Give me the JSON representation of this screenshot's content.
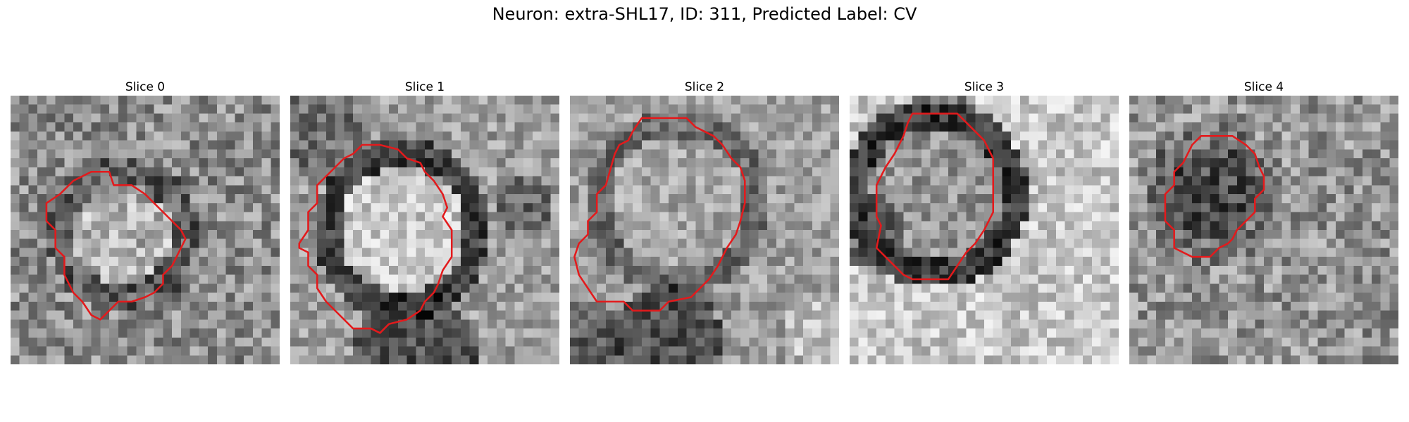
{
  "figure": {
    "title": "Neuron: extra-SHL17, ID: 311, Predicted Label: CV"
  },
  "contour_color": "#e31a1c",
  "colormap": "gray",
  "panels": [
    {
      "title": "Slice 0",
      "contour": [
        [
          11.5,
          10
        ],
        [
          13.5,
          10
        ],
        [
          15,
          11
        ],
        [
          16,
          12
        ],
        [
          17,
          13
        ],
        [
          18,
          14
        ],
        [
          19,
          15
        ],
        [
          19.5,
          16
        ],
        [
          19,
          17
        ],
        [
          18.5,
          18
        ],
        [
          18,
          19
        ],
        [
          17,
          20
        ],
        [
          17,
          21
        ],
        [
          16,
          22
        ],
        [
          15,
          22.5
        ],
        [
          13.5,
          23
        ],
        [
          12,
          23
        ],
        [
          11,
          24
        ],
        [
          10,
          25
        ],
        [
          9,
          24.5
        ],
        [
          8,
          23
        ],
        [
          7,
          22
        ],
        [
          6.5,
          21
        ],
        [
          6,
          20
        ],
        [
          6,
          18
        ],
        [
          5,
          17
        ],
        [
          5,
          15
        ],
        [
          4,
          14
        ],
        [
          4,
          12
        ],
        [
          5.5,
          11
        ],
        [
          7,
          9.5
        ],
        [
          8,
          9
        ],
        [
          9,
          8.5
        ],
        [
          10,
          8.5
        ],
        [
          11,
          8.5
        ]
      ]
    },
    {
      "title": "Slice 1",
      "contour": [
        [
          10,
          5.5
        ],
        [
          12,
          6
        ],
        [
          13,
          7
        ],
        [
          14.5,
          7.5
        ],
        [
          15,
          8.5
        ],
        [
          16,
          9.5
        ],
        [
          17,
          11
        ],
        [
          17.5,
          12.5
        ],
        [
          17,
          13.5
        ],
        [
          18,
          15
        ],
        [
          18,
          18
        ],
        [
          17,
          19.5
        ],
        [
          16.5,
          21
        ],
        [
          16,
          22
        ],
        [
          15,
          23
        ],
        [
          14.5,
          24
        ],
        [
          13,
          25
        ],
        [
          11,
          25.5
        ],
        [
          10,
          26.5
        ],
        [
          9,
          26
        ],
        [
          7,
          26
        ],
        [
          6,
          25
        ],
        [
          5,
          24
        ],
        [
          4,
          23
        ],
        [
          3,
          21.5
        ],
        [
          3,
          20
        ],
        [
          2,
          19
        ],
        [
          2,
          17.5
        ],
        [
          1,
          17
        ],
        [
          1,
          16.5
        ],
        [
          2,
          15
        ],
        [
          2,
          13
        ],
        [
          3,
          12
        ],
        [
          3,
          10
        ],
        [
          4,
          9
        ],
        [
          5,
          8
        ],
        [
          6,
          7
        ],
        [
          7,
          6.5
        ],
        [
          8,
          5.5
        ]
      ]
    },
    {
      "title": "Slice 2",
      "contour": [
        [
          8,
          2.5
        ],
        [
          13,
          2.5
        ],
        [
          14,
          3.5
        ],
        [
          16,
          4.5
        ],
        [
          17,
          5.5
        ],
        [
          18,
          7
        ],
        [
          19,
          8
        ],
        [
          19.5,
          9.5
        ],
        [
          19.5,
          12
        ],
        [
          19,
          14
        ],
        [
          18.5,
          15.5
        ],
        [
          17.5,
          17
        ],
        [
          17,
          18
        ],
        [
          16.5,
          19
        ],
        [
          15.5,
          20.5
        ],
        [
          14.5,
          21.5
        ],
        [
          13.5,
          22.5
        ],
        [
          11,
          23
        ],
        [
          10,
          24
        ],
        [
          7,
          24
        ],
        [
          6,
          23
        ],
        [
          3,
          23
        ],
        [
          2,
          21.5
        ],
        [
          1,
          20
        ],
        [
          0.5,
          18
        ],
        [
          1,
          16.5
        ],
        [
          2,
          15.5
        ],
        [
          2,
          14
        ],
        [
          3,
          13
        ],
        [
          3,
          11
        ],
        [
          4,
          10
        ],
        [
          5,
          6.5
        ],
        [
          5.5,
          5.5
        ],
        [
          6.5,
          5
        ],
        [
          7,
          4
        ]
      ]
    },
    {
      "title": "Slice 3",
      "contour": [
        [
          7,
          2
        ],
        [
          12,
          2
        ],
        [
          13,
          3
        ],
        [
          14,
          4
        ],
        [
          15,
          5
        ],
        [
          15.5,
          6
        ],
        [
          16,
          7
        ],
        [
          16,
          13
        ],
        [
          15,
          15
        ],
        [
          14,
          16.5
        ],
        [
          13,
          17.5
        ],
        [
          12,
          19
        ],
        [
          11,
          20.5
        ],
        [
          7,
          20.5
        ],
        [
          6,
          20
        ],
        [
          5,
          19
        ],
        [
          4,
          18
        ],
        [
          3,
          17
        ],
        [
          3.5,
          14.5
        ],
        [
          3,
          13.5
        ],
        [
          3,
          12
        ],
        [
          3,
          10
        ],
        [
          4,
          8
        ],
        [
          5,
          6.5
        ],
        [
          6,
          4.5
        ],
        [
          6.5,
          3
        ]
      ]
    },
    {
      "title": "Slice 4",
      "contour": [
        [
          8,
          4.5
        ],
        [
          11.5,
          4.5
        ],
        [
          13,
          5.5
        ],
        [
          14,
          6.5
        ],
        [
          14.5,
          8
        ],
        [
          15,
          9
        ],
        [
          15,
          10.5
        ],
        [
          14,
          11.5
        ],
        [
          14,
          13
        ],
        [
          13,
          14
        ],
        [
          12,
          15
        ],
        [
          11.5,
          16
        ],
        [
          11,
          16.5
        ],
        [
          10,
          17
        ],
        [
          9,
          18
        ],
        [
          7,
          18
        ],
        [
          6,
          17.5
        ],
        [
          5,
          17
        ],
        [
          5,
          15
        ],
        [
          4,
          14
        ],
        [
          4,
          12.5
        ],
        [
          4,
          11
        ],
        [
          5,
          10
        ],
        [
          5,
          8.5
        ],
        [
          6,
          7.5
        ],
        [
          7,
          5.5
        ]
      ]
    }
  ]
}
